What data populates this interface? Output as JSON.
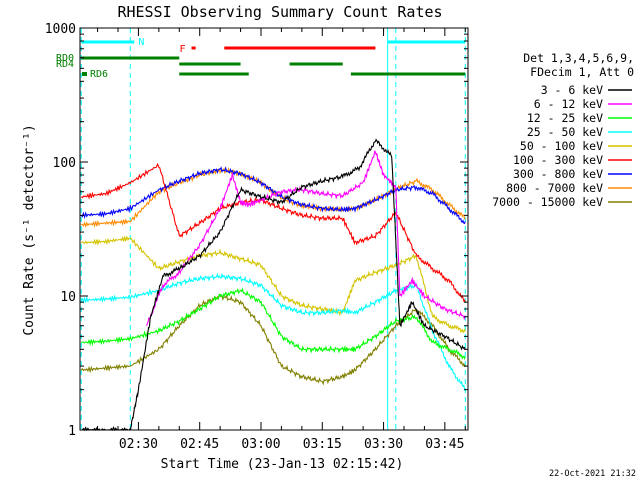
{
  "chart_data": {
    "type": "line",
    "title": "RHESSI Observing Summary Count Rates",
    "xlabel": "Start Time (23-Jan-13 02:15:42)",
    "ylabel": "Count Rate (s⁻¹ detector⁻¹)",
    "y_scale": "log",
    "xlim": [
      "02:15:42",
      "03:50:40"
    ],
    "ylim": [
      1,
      1000
    ],
    "x_ticks": [
      "02:30",
      "02:45",
      "03:00",
      "03:15",
      "03:30",
      "03:45"
    ],
    "y_ticks": [
      "1",
      "10",
      "100",
      "1000"
    ],
    "legend_header": [
      "Det 1,3,4,5,6,9,",
      "FDecim 1, Att 0"
    ],
    "footer_date": "22-Oct-2021 21:32",
    "grid": false,
    "legend_position": "right",
    "series": [
      {
        "name": "3 - 6 keV",
        "color": "#000000",
        "x": [
          "02:16",
          "02:22",
          "02:28",
          "02:30",
          "02:33",
          "02:36",
          "02:40",
          "02:45",
          "02:50",
          "02:55",
          "03:00",
          "03:05",
          "03:10",
          "03:15",
          "03:20",
          "03:24",
          "03:28",
          "03:32",
          "03:34",
          "03:37",
          "03:40",
          "03:45",
          "03:50"
        ],
        "y": [
          1,
          1,
          1,
          2,
          7,
          14,
          16,
          20,
          30,
          62,
          55,
          50,
          65,
          72,
          78,
          90,
          145,
          110,
          6,
          9,
          6,
          5,
          4
        ]
      },
      {
        "name": "6 - 12 keV",
        "color": "#ff00ff",
        "x": [
          "02:16",
          "02:28",
          "02:32",
          "02:36",
          "02:40",
          "02:45",
          "02:50",
          "02:53",
          "02:55",
          "02:57",
          "03:00",
          "03:05",
          "03:10",
          "03:15",
          "03:20",
          "03:25",
          "03:28",
          "03:30",
          "03:33",
          "03:34",
          "03:37",
          "03:40",
          "03:45",
          "03:50"
        ],
        "y": [
          null,
          null,
          6,
          12,
          15,
          24,
          45,
          80,
          50,
          48,
          52,
          60,
          62,
          58,
          56,
          70,
          120,
          80,
          65,
          10,
          13,
          10,
          8,
          7
        ]
      },
      {
        "name": "12 - 25 keV",
        "color": "#00ff00",
        "x": [
          "02:16",
          "02:22",
          "02:28",
          "02:35",
          "02:40",
          "02:45",
          "02:50",
          "02:55",
          "03:00",
          "03:05",
          "03:10",
          "03:15",
          "03:20",
          "03:23",
          "03:28",
          "03:33",
          "03:38",
          "03:42",
          "03:46",
          "03:50"
        ],
        "y": [
          4.5,
          4.6,
          4.8,
          5.5,
          6.5,
          8.0,
          10,
          11,
          9,
          5,
          4,
          4,
          4,
          4.0,
          5,
          6.5,
          7,
          4.5,
          4.0,
          3.5
        ]
      },
      {
        "name": "25 - 50 keV",
        "color": "#00ffff",
        "x": [
          "02:16",
          "02:22",
          "02:28",
          "02:35",
          "02:40",
          "02:45",
          "02:50",
          "02:55",
          "03:00",
          "03:05",
          "03:10",
          "03:15",
          "03:20",
          "03:23",
          "03:28",
          "03:33",
          "03:38",
          "03:42",
          "03:46",
          "03:50"
        ],
        "y": [
          9.3,
          9.5,
          9.8,
          11,
          12.5,
          13.5,
          14,
          13.5,
          12,
          8.5,
          7.5,
          7.5,
          7.8,
          7.5,
          9,
          11,
          12,
          5.5,
          3,
          2
        ]
      },
      {
        "name": "50 - 100 keV",
        "color": "#d4c400",
        "x": [
          "02:16",
          "02:22",
          "02:28",
          "02:35",
          "02:40",
          "02:45",
          "02:50",
          "02:55",
          "03:00",
          "03:05",
          "03:10",
          "03:15",
          "03:20",
          "03:23",
          "03:28",
          "03:33",
          "03:38",
          "03:42",
          "03:46",
          "03:50"
        ],
        "y": [
          25,
          25.5,
          27,
          16,
          18,
          20,
          21,
          19,
          17,
          10,
          8.5,
          8.0,
          7.5,
          13,
          15,
          17,
          20,
          7,
          6,
          5.5
        ]
      },
      {
        "name": "100 - 300 keV",
        "color": "#ff0000",
        "x": [
          "02:16",
          "02:22",
          "02:28",
          "02:35",
          "02:40",
          "02:45",
          "02:50",
          "02:55",
          "03:00",
          "03:05",
          "03:10",
          "03:15",
          "03:20",
          "03:23",
          "03:28",
          "03:33",
          "03:38",
          "03:42",
          "03:46",
          "03:50"
        ],
        "y": [
          55,
          58,
          70,
          95,
          28,
          35,
          45,
          50,
          52,
          45,
          40,
          38,
          38,
          25,
          28,
          42,
          20,
          16,
          13,
          9
        ]
      },
      {
        "name": "300 - 800 keV",
        "color": "#0000ff",
        "x": [
          "02:16",
          "02:22",
          "02:28",
          "02:35",
          "02:40",
          "02:45",
          "02:50",
          "02:55",
          "03:00",
          "03:05",
          "03:10",
          "03:15",
          "03:20",
          "03:23",
          "03:28",
          "03:33",
          "03:38",
          "03:42",
          "03:46",
          "03:50"
        ],
        "y": [
          40,
          41,
          45,
          62,
          72,
          82,
          88,
          82,
          70,
          55,
          48,
          45,
          44,
          45,
          52,
          62,
          65,
          58,
          45,
          35
        ]
      },
      {
        "name": "800 - 7000 keV",
        "color": "#ff8c00",
        "x": [
          "02:16",
          "02:22",
          "02:28",
          "02:35",
          "02:40",
          "02:45",
          "02:50",
          "02:55",
          "03:00",
          "03:05",
          "03:10",
          "03:15",
          "03:20",
          "03:23",
          "03:28",
          "03:33",
          "03:38",
          "03:42",
          "03:46",
          "03:50"
        ],
        "y": [
          34,
          35,
          36,
          60,
          70,
          80,
          87,
          82,
          70,
          54,
          47,
          45,
          44,
          45,
          52,
          63,
          72,
          62,
          48,
          38
        ]
      },
      {
        "name": "7000 - 15000 keV",
        "color": "#808000",
        "x": [
          "02:16",
          "02:22",
          "02:28",
          "02:35",
          "02:40",
          "02:45",
          "02:50",
          "02:55",
          "03:00",
          "03:05",
          "03:10",
          "03:15",
          "03:20",
          "03:23",
          "03:28",
          "03:33",
          "03:38",
          "03:42",
          "03:46",
          "03:50"
        ],
        "y": [
          2.8,
          2.9,
          3.0,
          4.0,
          6.0,
          8.5,
          10,
          9,
          6,
          3,
          2.5,
          2.3,
          2.5,
          2.8,
          4,
          6,
          8,
          6,
          4,
          3
        ]
      }
    ],
    "flags": [
      {
        "label": "N",
        "color": "#00ffff",
        "segments": [
          [
            "02:16",
            "02:29"
          ],
          [
            "03:31",
            "03:50"
          ]
        ]
      },
      {
        "label": "F",
        "color": "#ff0000",
        "segments": [
          [
            "02:43",
            "02:44"
          ],
          [
            "02:51",
            "03:28"
          ]
        ]
      },
      {
        "label": "RD0",
        "color": "#008000",
        "segments": [
          [
            "02:16",
            "02:40"
          ]
        ]
      },
      {
        "label": "RD4",
        "color": "#008000",
        "segments": [
          [
            "02:40",
            "02:55"
          ],
          [
            "03:07",
            "03:20"
          ]
        ]
      },
      {
        "label": "RD6",
        "color": "#008000",
        "segments": [
          [
            "02:40",
            "02:57"
          ],
          [
            "03:22",
            "03:50"
          ]
        ]
      }
    ],
    "vlines": [
      {
        "x": "02:16",
        "color": "#00ffff",
        "style": "dash"
      },
      {
        "x": "02:28",
        "color": "#00ffff",
        "style": "dash"
      },
      {
        "x": "03:31",
        "color": "#00ffff",
        "style": "solid"
      },
      {
        "x": "03:33",
        "color": "#00ffff",
        "style": "dash"
      },
      {
        "x": "03:50",
        "color": "#00ffff",
        "style": "dash"
      }
    ]
  }
}
